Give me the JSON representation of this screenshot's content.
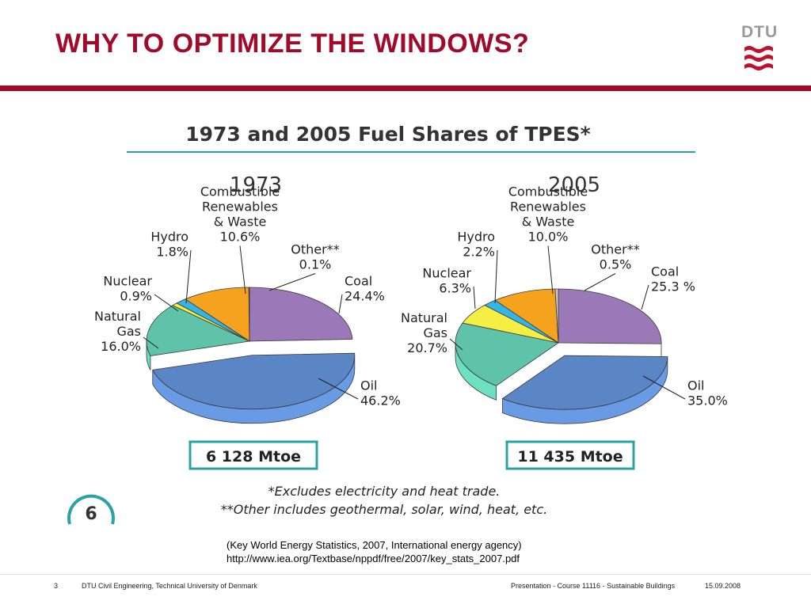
{
  "slide": {
    "title": "WHY TO OPTIMIZE THE WINDOWS?",
    "logo_text": "DTU",
    "source_line1": "(Key World Energy Statistics, 2007, International energy agency)",
    "source_line2": "http://www.iea.org/Textbase/nppdf/free/2007/key_stats_2007.pdf"
  },
  "footer": {
    "page": "3",
    "org": "DTU Civil Engineering, Technical University of Denmark",
    "presentation": "Presentation - Course 11116 - Sustainable Buildings",
    "date": "15.09.2008"
  },
  "chart_data": {
    "type": "pie",
    "title": "1973 and 2005 Fuel Shares of TPES*",
    "footnotes": [
      "*Excludes electricity and heat trade.",
      "**Other includes geothermal, solar, wind, heat, etc."
    ],
    "page_badge": "6",
    "charts": [
      {
        "name": "1973",
        "total": "6 128 Mtoe",
        "slices": [
          {
            "category": "Coal",
            "label": [
              "Coal",
              "24.4%"
            ],
            "value": 24.4,
            "color": "#9b78b8"
          },
          {
            "category": "Oil",
            "label": [
              "Oil",
              "46.2%"
            ],
            "value": 46.2,
            "color": "#5b86c6"
          },
          {
            "category": "Natural Gas",
            "label": [
              "Natural",
              "Gas",
              "16.0%"
            ],
            "value": 16.0,
            "color": "#5ec3a8"
          },
          {
            "category": "Nuclear",
            "label": [
              "Nuclear",
              "0.9%"
            ],
            "value": 0.9,
            "color": "#f5ee45"
          },
          {
            "category": "Hydro",
            "label": [
              "Hydro",
              "1.8%"
            ],
            "value": 1.8,
            "color": "#33b5e8"
          },
          {
            "category": "Combustible Renewables & Waste",
            "label": [
              "Combustible",
              "Renewables",
              "& Waste",
              "10.6%"
            ],
            "value": 10.6,
            "color": "#f5a31f"
          },
          {
            "category": "Other**",
            "label": [
              "Other**",
              "0.1%"
            ],
            "value": 0.1,
            "color": "#c8c8c8"
          }
        ]
      },
      {
        "name": "2005",
        "total": "11 435 Mtoe",
        "slices": [
          {
            "category": "Coal",
            "label": [
              "Coal",
              "25.3 %"
            ],
            "value": 25.3,
            "color": "#9b78b8"
          },
          {
            "category": "Oil",
            "label": [
              "Oil",
              "35.0%"
            ],
            "value": 35.0,
            "color": "#5b86c6"
          },
          {
            "category": "Natural Gas",
            "label": [
              "Natural",
              "Gas",
              "20.7%"
            ],
            "value": 20.7,
            "color": "#5ec3a8"
          },
          {
            "category": "Nuclear",
            "label": [
              "Nuclear",
              "6.3%"
            ],
            "value": 6.3,
            "color": "#f5ee45"
          },
          {
            "category": "Hydro",
            "label": [
              "Hydro",
              "2.2%"
            ],
            "value": 2.2,
            "color": "#33b5e8"
          },
          {
            "category": "Combustible Renewables & Waste",
            "label": [
              "Combustible",
              "Renewables",
              "& Waste",
              "10.0%"
            ],
            "value": 10.0,
            "color": "#f5a31f"
          },
          {
            "category": "Other**",
            "label": [
              "Other**",
              "0.5%"
            ],
            "value": 0.5,
            "color": "#c8c8c8"
          }
        ]
      }
    ]
  }
}
